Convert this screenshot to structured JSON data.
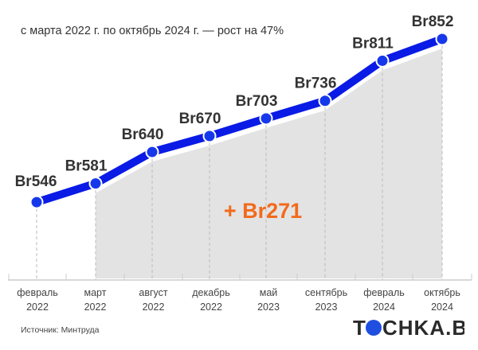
{
  "chart_data": {
    "type": "line",
    "subtitle": "с марта 2022 г. по октябрь 2024 г. — рост на 47%",
    "categories": [
      [
        "февраль",
        "2022"
      ],
      [
        "март",
        "2022"
      ],
      [
        "август",
        "2022"
      ],
      [
        "декабрь",
        "2022"
      ],
      [
        "май",
        "2023"
      ],
      [
        "сентябрь",
        "2023"
      ],
      [
        "февраль",
        "2024"
      ],
      [
        "октябрь",
        "2024"
      ]
    ],
    "values": [
      546,
      581,
      640,
      670,
      703,
      736,
      811,
      852
    ],
    "data_labels": [
      "Br546",
      "Br581",
      "Br640",
      "Br670",
      "Br703",
      "Br736",
      "Br811",
      "Br852"
    ],
    "annotation": "+ Br271",
    "shaded_range": [
      "март 2022",
      "октябрь 2024"
    ],
    "ylim": [
      400,
      925
    ],
    "grid": false,
    "colors": {
      "line": "#0a1be6",
      "area": "#e3e3e3",
      "annotation": "#f26a1b",
      "text": "#333333"
    }
  },
  "source": "Источник: Минтруда",
  "logo": "TOCHKA.BY"
}
